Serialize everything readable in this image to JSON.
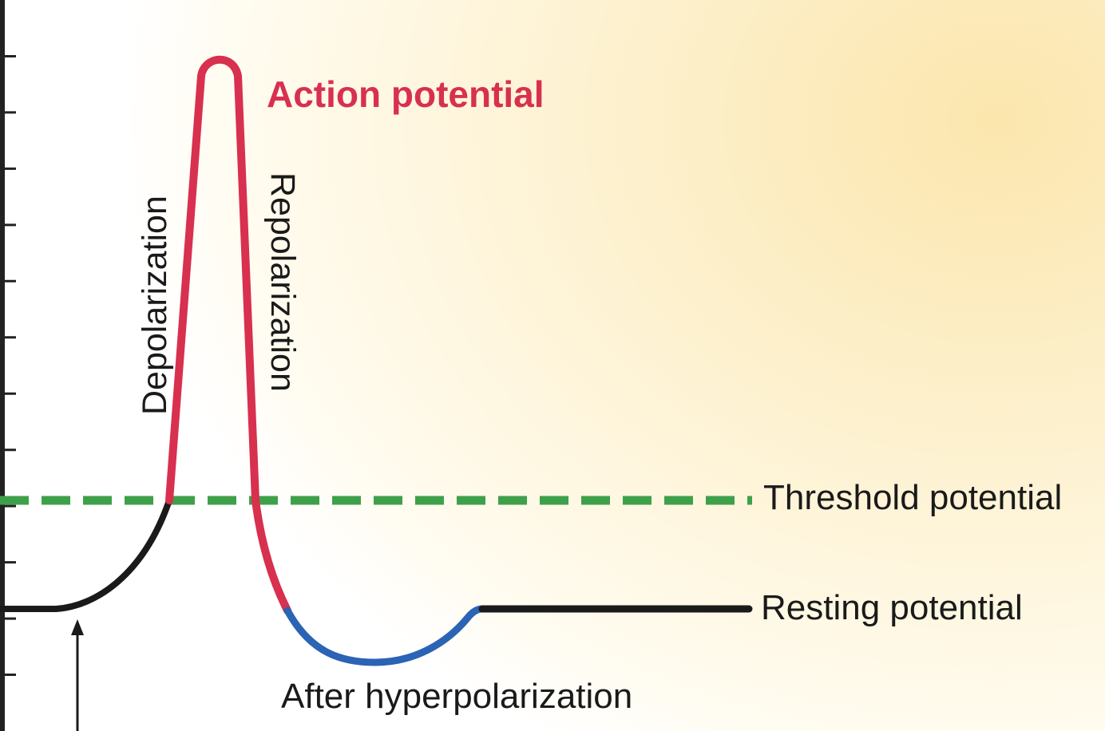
{
  "labels": {
    "action_potential": "Action potential",
    "depolarization": "Depolarization",
    "repolarization": "Repolarization",
    "threshold": "Threshold potential",
    "resting": "Resting potential",
    "after_hyperpolarization": "After hyperpolarization"
  },
  "colors": {
    "action_potential": "#d8304f",
    "threshold_line": "#3fa04a",
    "hyperpolarization": "#2b63b5",
    "resting": "#1a1a1a",
    "axis": "#222222"
  },
  "axis": {
    "tick_count": 13
  }
}
